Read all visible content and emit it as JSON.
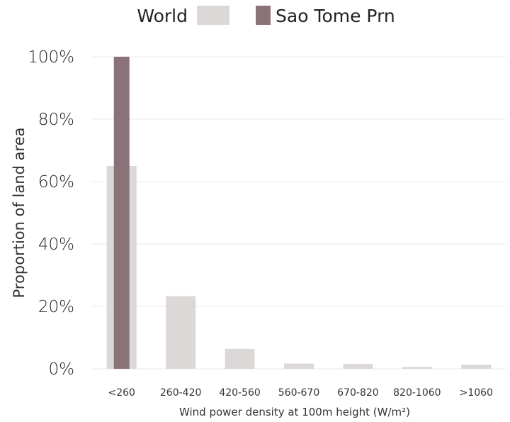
{
  "chart_data": {
    "type": "bar",
    "categories": [
      "<260",
      "260-420",
      "420-560",
      "560-670",
      "670-820",
      "820-1060",
      ">1060"
    ],
    "series": [
      {
        "name": "World",
        "values": [
          65,
          23.3,
          6.4,
          1.7,
          1.6,
          0.6,
          1.3
        ],
        "color": "#ddd8d8"
      },
      {
        "name": "Sao Tome Prn",
        "values": [
          100,
          0,
          0,
          0,
          0,
          0,
          0
        ],
        "color": "#8a7378"
      }
    ],
    "xlabel": "Wind power density at 100m height (W/m²)",
    "ylabel": "Proportion of land area",
    "ylim": [
      0,
      100
    ],
    "yticks": [
      "0%",
      "20%",
      "40%",
      "60%",
      "80%",
      "100%"
    ],
    "grid": true,
    "legend_position": "top"
  }
}
